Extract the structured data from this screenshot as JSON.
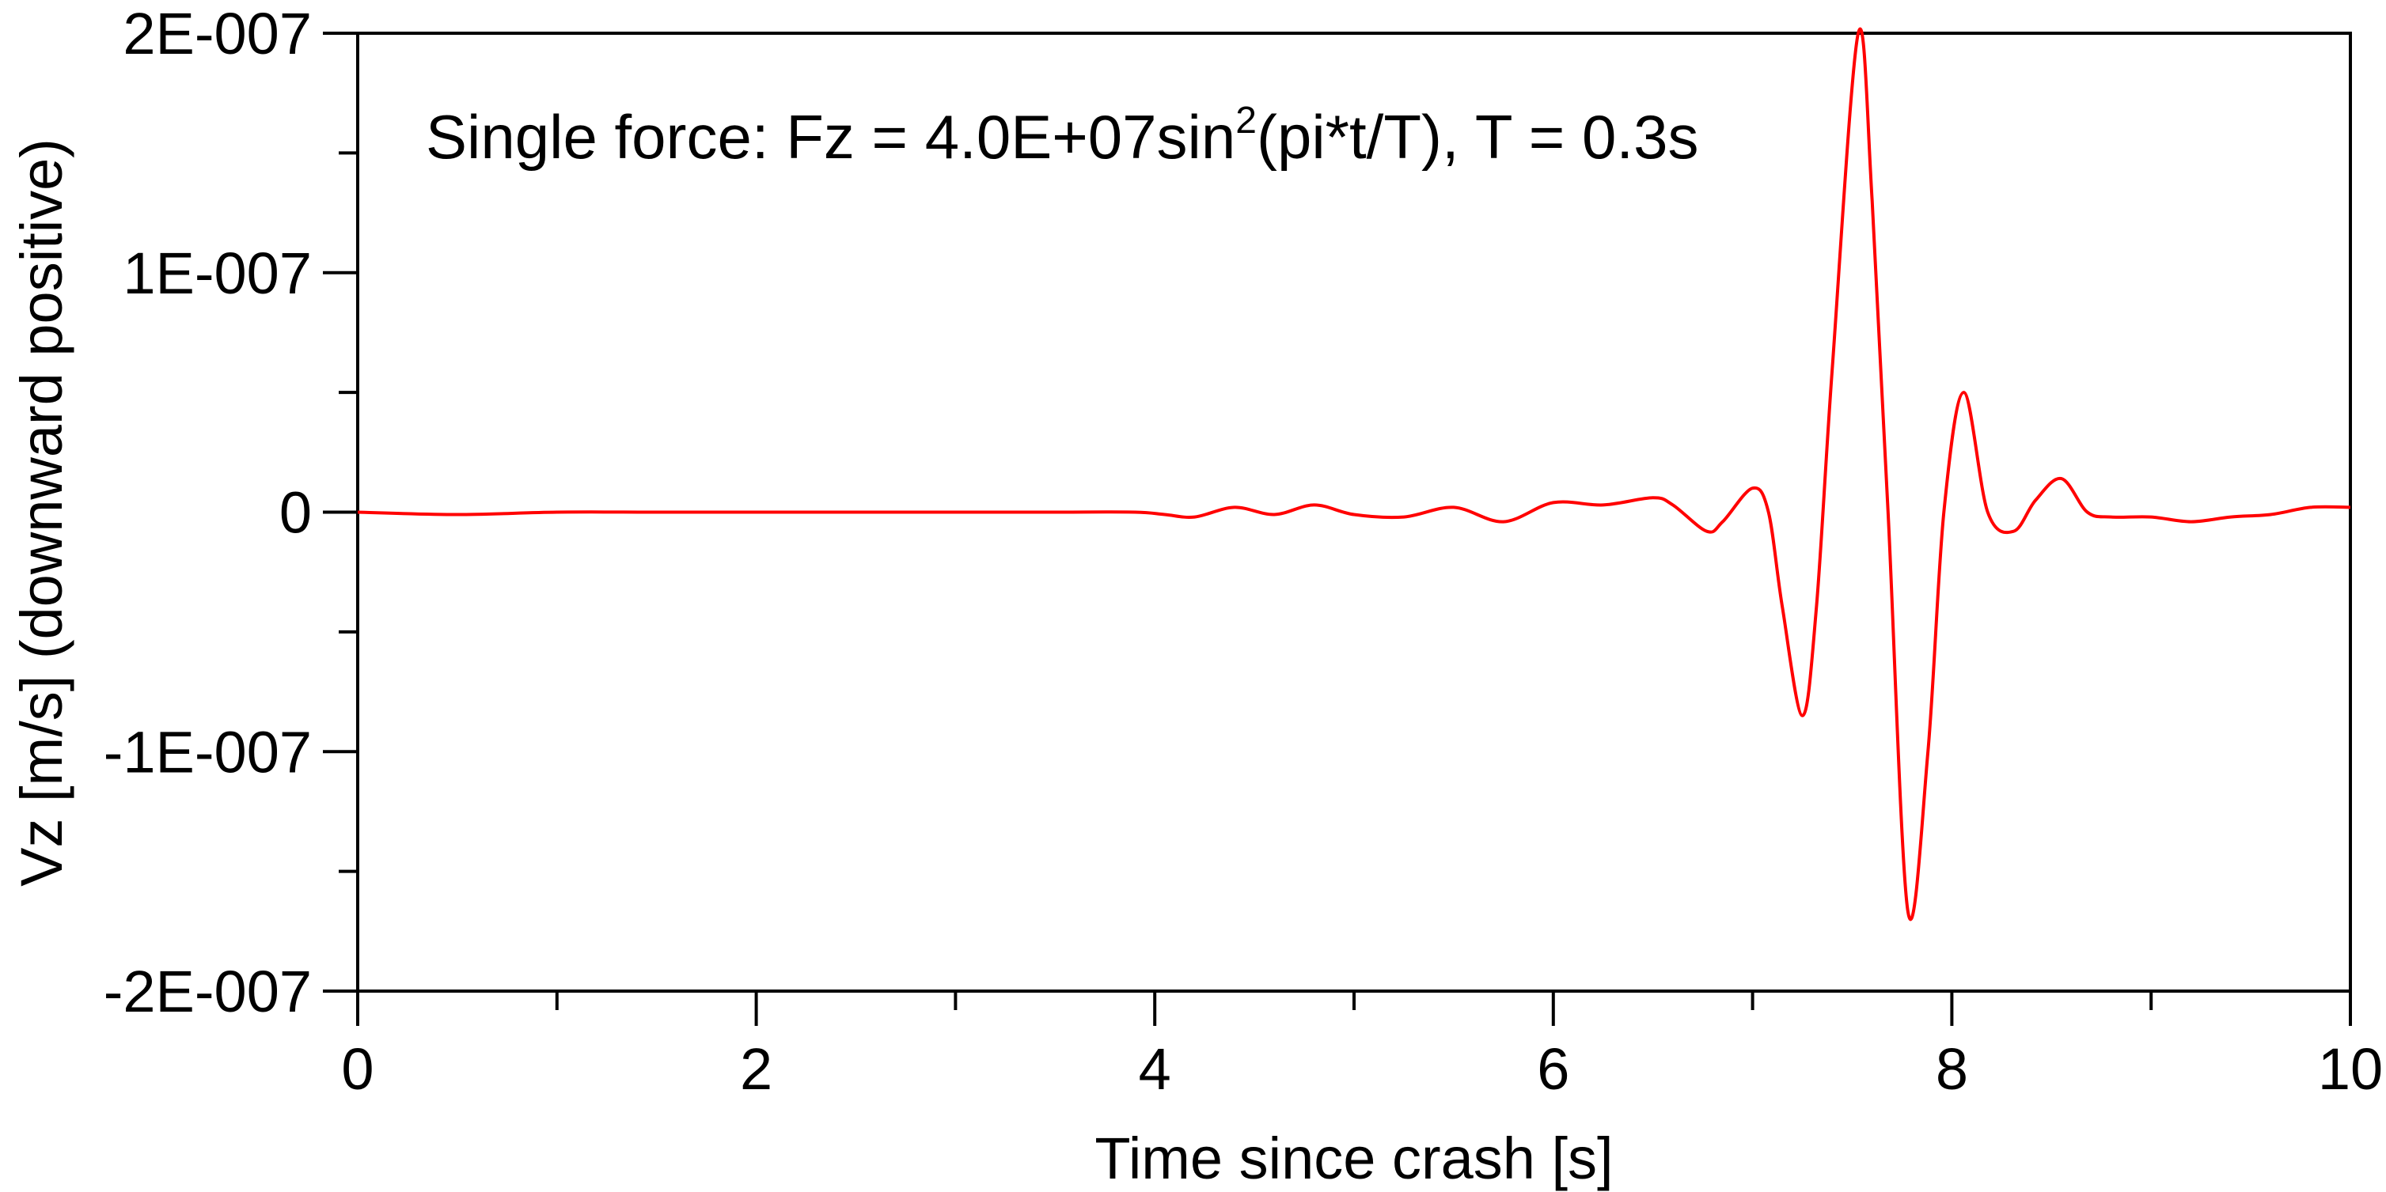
{
  "chart_data": {
    "type": "line",
    "annotation": {
      "prefix": "Single force: Fz = 4.0E+07sin",
      "superscript": "2",
      "suffix": "(pi*t/T), T = 0.3s"
    },
    "xlabel": "Time since crash [s]",
    "ylabel": "Vz [m/s] (downward positive)",
    "xlim": [
      0,
      10
    ],
    "ylim": [
      -2e-07,
      2e-07
    ],
    "x_major_ticks": [
      0,
      2,
      4,
      6,
      8,
      10
    ],
    "x_tick_labels": [
      "0",
      "2",
      "4",
      "6",
      "8",
      "10"
    ],
    "x_minor_ticks": [
      1,
      3,
      5,
      7,
      9
    ],
    "y_major_ticks": [
      2e-07,
      1e-07,
      0,
      -1e-07,
      -2e-07
    ],
    "y_tick_labels": [
      "2E-007",
      "1E-007",
      "0",
      "-1E-007",
      "-2E-007"
    ],
    "y_minor_ticks": [
      1.5e-07,
      5e-08,
      -5e-08,
      -1.5e-07
    ],
    "grid": false,
    "series_color": "#ff0000",
    "series": [
      {
        "x": [
          0,
          0.5,
          1.0,
          1.5,
          2.0,
          2.5,
          3.0,
          3.5,
          3.9,
          4.05,
          4.2,
          4.4,
          4.6,
          4.8,
          5.0,
          5.25,
          5.5,
          5.75,
          6.0,
          6.25,
          6.5,
          6.6,
          6.77,
          6.85,
          7.0,
          7.08,
          7.15,
          7.25,
          7.32,
          7.4,
          7.53,
          7.6,
          7.68,
          7.78,
          7.88,
          7.96,
          8.06,
          8.18,
          8.31,
          8.42,
          8.55,
          8.68,
          8.8,
          9.0,
          9.2,
          9.4,
          9.6,
          9.8,
          10.0
        ],
        "y": [
          0,
          -1e-09,
          0,
          0,
          0,
          0,
          0,
          0,
          0,
          -1e-09,
          -2e-09,
          2e-09,
          -1e-09,
          3e-09,
          -1e-09,
          -2e-09,
          2e-09,
          -4e-09,
          4e-09,
          3e-09,
          6e-09,
          3e-09,
          -8e-09,
          -4e-09,
          1e-08,
          0,
          -4e-08,
          -8.5e-08,
          -4e-08,
          6e-08,
          2e-07,
          1.3e-07,
          0,
          -1.67e-07,
          -1e-07,
          0,
          5e-08,
          0,
          -8e-09,
          5e-09,
          1.4e-08,
          0,
          -2e-09,
          -2e-09,
          -4e-09,
          -2e-09,
          -1e-09,
          2e-09,
          2e-09
        ]
      }
    ]
  }
}
